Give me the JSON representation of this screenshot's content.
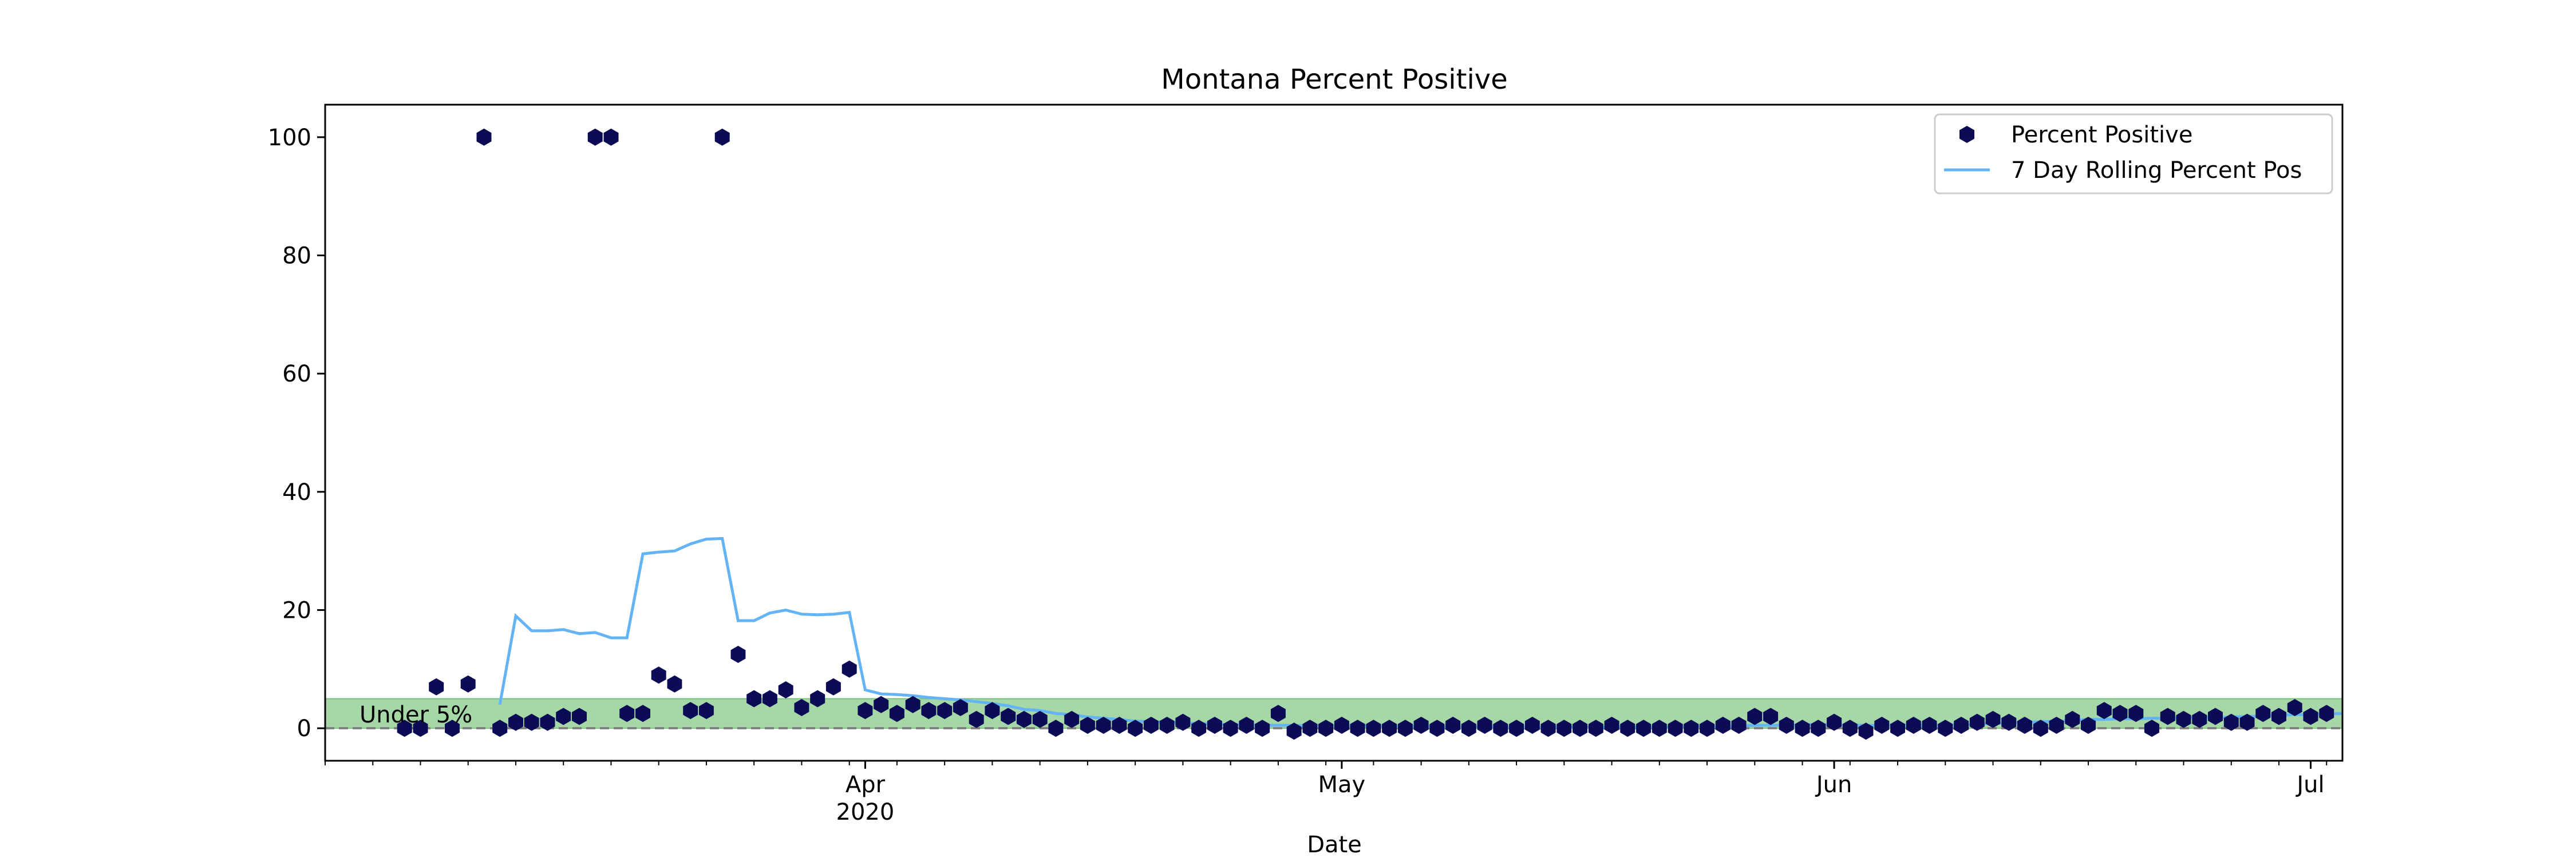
{
  "chart_data": {
    "type": "scatter",
    "title": "Montana Percent Positive",
    "xlabel": "Date",
    "ylabel": "",
    "x_dates": [
      "2020-03-03",
      "2020-03-04",
      "2020-03-05",
      "2020-03-06",
      "2020-03-07",
      "2020-03-08",
      "2020-03-09",
      "2020-03-10",
      "2020-03-11",
      "2020-03-12",
      "2020-03-13",
      "2020-03-14",
      "2020-03-15",
      "2020-03-16",
      "2020-03-17",
      "2020-03-18",
      "2020-03-19",
      "2020-03-20",
      "2020-03-21",
      "2020-03-22",
      "2020-03-23",
      "2020-03-24",
      "2020-03-25",
      "2020-03-26",
      "2020-03-27",
      "2020-03-28",
      "2020-03-29",
      "2020-03-30",
      "2020-03-31",
      "2020-04-01",
      "2020-04-02",
      "2020-04-03",
      "2020-04-04",
      "2020-04-05",
      "2020-04-06",
      "2020-04-07",
      "2020-04-08",
      "2020-04-09",
      "2020-04-10",
      "2020-04-11",
      "2020-04-12",
      "2020-04-13",
      "2020-04-14",
      "2020-04-15",
      "2020-04-16",
      "2020-04-17",
      "2020-04-18",
      "2020-04-19",
      "2020-04-20",
      "2020-04-21",
      "2020-04-22",
      "2020-04-23",
      "2020-04-24",
      "2020-04-25",
      "2020-04-26",
      "2020-04-27",
      "2020-04-28",
      "2020-04-29",
      "2020-04-30",
      "2020-05-01",
      "2020-05-02",
      "2020-05-03",
      "2020-05-04",
      "2020-05-05",
      "2020-05-06",
      "2020-05-07",
      "2020-05-08",
      "2020-05-09",
      "2020-05-10",
      "2020-05-11",
      "2020-05-12",
      "2020-05-13",
      "2020-05-14",
      "2020-05-15",
      "2020-05-16",
      "2020-05-17",
      "2020-05-18",
      "2020-05-19",
      "2020-05-20",
      "2020-05-21",
      "2020-05-22",
      "2020-05-23",
      "2020-05-24",
      "2020-05-25",
      "2020-05-26",
      "2020-05-27",
      "2020-05-28",
      "2020-05-29",
      "2020-05-30",
      "2020-05-31",
      "2020-06-01",
      "2020-06-02",
      "2020-06-03",
      "2020-06-04",
      "2020-06-05",
      "2020-06-06",
      "2020-06-07",
      "2020-06-08",
      "2020-06-09",
      "2020-06-10",
      "2020-06-11",
      "2020-06-12",
      "2020-06-13",
      "2020-06-14",
      "2020-06-15",
      "2020-06-16",
      "2020-06-17",
      "2020-06-18",
      "2020-06-19",
      "2020-06-20",
      "2020-06-21",
      "2020-06-22",
      "2020-06-23",
      "2020-06-24",
      "2020-06-25",
      "2020-06-26",
      "2020-06-27",
      "2020-06-28",
      "2020-06-29",
      "2020-06-30",
      "2020-07-01",
      "2020-07-02",
      "2020-07-03"
    ],
    "series": [
      {
        "name": "Percent Positive",
        "kind": "scatter",
        "marker": "hexagon",
        "color": "#0b0c55",
        "values": [
          0,
          0,
          7,
          0,
          7.5,
          100,
          0,
          1,
          1,
          1,
          2,
          2,
          100,
          100,
          2.5,
          2.5,
          9,
          7.5,
          3,
          3,
          100,
          12.5,
          5,
          5,
          6.5,
          3.5,
          5,
          7,
          10,
          3,
          4,
          2.5,
          4,
          3,
          3,
          3.5,
          1.5,
          3,
          2,
          1.5,
          1.5,
          0,
          1.5,
          0.5,
          0.5,
          0.5,
          0,
          0.5,
          0.5,
          1,
          0,
          0.5,
          0,
          0.5,
          0,
          2.5,
          -0.5,
          0,
          0,
          0.5,
          0,
          0,
          0,
          0,
          0.5,
          0,
          0.5,
          0,
          0.5,
          0,
          0,
          0.5,
          0,
          0,
          0,
          0,
          0.5,
          0,
          0,
          0,
          0,
          0,
          0,
          0.5,
          0.5,
          2,
          2,
          0.5,
          0,
          0,
          1,
          0,
          -0.5,
          0.5,
          0,
          0.5,
          0.5,
          0,
          0.5,
          1,
          1.5,
          1,
          0.5,
          0,
          0.5,
          1.5,
          0.5,
          3,
          2.5,
          2.5,
          0,
          2,
          1.5,
          1.5,
          2,
          1,
          1,
          2.5,
          2,
          3.5,
          2,
          2.5
        ]
      },
      {
        "name": "7 Day Rolling Percent Pos",
        "kind": "line",
        "color": "#63b3f5",
        "start_index": 6,
        "values": [
          4,
          19,
          16.5,
          16.5,
          16.7,
          16,
          16.2,
          15.3,
          15.3,
          29.5,
          29.8,
          30,
          31.2,
          32,
          32.1,
          18.2,
          18.2,
          19.5,
          20,
          19.3,
          19.2,
          19.3,
          19.6,
          6.5,
          5.8,
          5.7,
          5.5,
          5.2,
          5,
          4.8,
          4.5,
          4.2,
          3.8,
          3.2,
          3,
          2.5,
          2.3,
          1.9,
          1.7,
          1.5,
          1.2,
          1.1,
          1,
          0.9,
          0.8,
          0.7,
          0.6,
          0.6,
          0.5,
          0.5,
          0.5,
          0.4,
          0.4,
          0.4,
          0.4,
          0.4,
          0.3,
          0.3,
          0.3,
          0.3,
          0.3,
          0.3,
          0.3,
          0.2,
          0.2,
          0.2,
          0.2,
          0.2,
          0.2,
          0.2,
          0.2,
          0.2,
          0.2,
          0.2,
          0.2,
          0.3,
          0.3,
          0.3,
          0.4,
          0.5,
          0.5,
          0.5,
          0.6,
          0.6,
          0.6,
          0.5,
          0.5,
          0.5,
          0.5,
          0.5,
          0.5,
          0.5,
          0.6,
          0.7,
          0.8,
          0.9,
          1,
          1.1,
          1.2,
          1.3,
          1.5,
          1.5,
          1.6,
          1.6,
          1.7,
          1.7,
          1.8,
          1.8,
          1.8,
          1.9,
          2,
          2.1,
          2.2,
          2.3,
          2.3,
          2.4,
          2.5
        ]
      }
    ],
    "threshold_band": {
      "y_min": 0,
      "y_max": 5,
      "color": "#a6d7a6",
      "label": "Under 5%"
    },
    "zero_line": {
      "y": 0,
      "style": "dashed",
      "color": "#808080"
    },
    "xlim": [
      "2020-02-27",
      "2020-07-03"
    ],
    "ylim": [
      -5.5,
      105.5
    ],
    "y_ticks": [
      0,
      20,
      40,
      60,
      80,
      100
    ],
    "x_major_ticks": [
      {
        "date": "2020-04-01",
        "label": "Apr",
        "sublabel": "2020"
      },
      {
        "date": "2020-05-01",
        "label": "May",
        "sublabel": ""
      },
      {
        "date": "2020-06-01",
        "label": "Jun",
        "sublabel": ""
      },
      {
        "date": "2020-07-01",
        "label": "Jul",
        "sublabel": ""
      }
    ],
    "x_minor_tick_interval_days": 3,
    "legend": {
      "placement": "top-right",
      "entries": [
        {
          "label": "Percent Positive",
          "kind": "marker",
          "color": "#0b0c55"
        },
        {
          "label": "7 Day Rolling Percent Pos",
          "kind": "line",
          "color": "#63b3f5"
        }
      ]
    },
    "grid": false
  }
}
